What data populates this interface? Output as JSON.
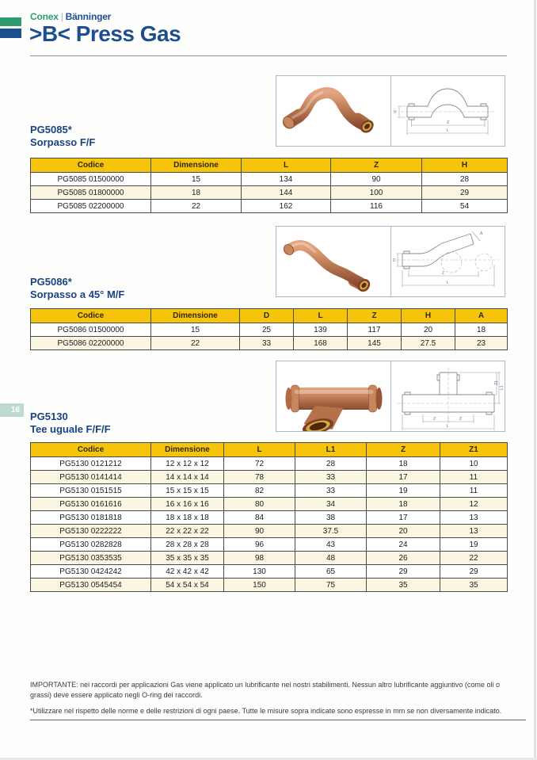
{
  "brand": {
    "conex": "Conex",
    "separator": "|",
    "banninger": "Bänninger",
    "product_line": ">B< Press Gas"
  },
  "page_tab": "16",
  "sections": [
    {
      "code": "PG5085*",
      "name": "Sorpasso F/F",
      "table": {
        "headers": [
          "Codice",
          "Dimensione",
          "L",
          "Z",
          "H"
        ],
        "rows": [
          [
            "PG5085 01500000",
            "15",
            "134",
            "90",
            "28"
          ],
          [
            "PG5085 01800000",
            "18",
            "144",
            "100",
            "29"
          ],
          [
            "PG5085 02200000",
            "22",
            "162",
            "116",
            "54"
          ]
        ]
      }
    },
    {
      "code": "PG5086*",
      "name": "Sorpasso a 45° M/F",
      "table": {
        "headers": [
          "Codice",
          "Dimensione",
          "D",
          "L",
          "Z",
          "H",
          "A"
        ],
        "rows": [
          [
            "PG5086 01500000",
            "15",
            "25",
            "139",
            "117",
            "20",
            "18"
          ],
          [
            "PG5086 02200000",
            "22",
            "33",
            "168",
            "145",
            "27.5",
            "23"
          ]
        ]
      }
    },
    {
      "code": "PG5130",
      "name": "Tee uguale F/F/F",
      "table": {
        "headers": [
          "Codice",
          "Dimensione",
          "L",
          "L1",
          "Z",
          "Z1"
        ],
        "rows": [
          [
            "PG5130 0121212",
            "12 x 12 x 12",
            "72",
            "28",
            "18",
            "10"
          ],
          [
            "PG5130 0141414",
            "14 x 14 x 14",
            "78",
            "33",
            "17",
            "11"
          ],
          [
            "PG5130 0151515",
            "15 x 15 x 15",
            "82",
            "33",
            "19",
            "11"
          ],
          [
            "PG5130 0161616",
            "16 x 16 x 16",
            "80",
            "34",
            "18",
            "12"
          ],
          [
            "PG5130 0181818",
            "18 x 18 x 18",
            "84",
            "38",
            "17",
            "13"
          ],
          [
            "PG5130 0222222",
            "22 x 22 x 22",
            "90",
            "37.5",
            "20",
            "13"
          ],
          [
            "PG5130 0282828",
            "28 x 28 x 28",
            "96",
            "43",
            "24",
            "19"
          ],
          [
            "PG5130 0353535",
            "35 x 35 x 35",
            "98",
            "48",
            "26",
            "22"
          ],
          [
            "PG5130 0424242",
            "42 x 42 x 42",
            "130",
            "65",
            "29",
            "29"
          ],
          [
            "PG5130 0545454",
            "54 x 54 x 54",
            "150",
            "75",
            "35",
            "35"
          ]
        ]
      }
    }
  ],
  "drawings": {
    "d1": {
      "h": "H",
      "z": "Z",
      "l": "L"
    },
    "d2": {
      "d": "D",
      "z": "Z",
      "l": "L",
      "a": "A"
    },
    "d3": {
      "za": "Z",
      "zb": "Z",
      "l": "L",
      "l1": "L1",
      "z1": "Z1"
    }
  },
  "notes": {
    "important": "IMPORTANTE: nei raccordi per applicazioni Gas viene applicato un lubrificante nei nostri stabilimenti. Nessun altro lubrificante aggiuntivo (come oli o grassi) deve essere applicato negli O-ring dei raccordi.",
    "usage": "*Utilizzare nel rispetto delle norme  e delle restrizioni di ogni paese. Tutte le misure sopra indicate sono espresse in mm se non diversamente indicato."
  },
  "colors": {
    "brand_green": "#2f9c70",
    "brand_blue": "#1c4f8f",
    "section_title_blue": "#1a4383",
    "table_header_yellow": "#f6c50b",
    "row_alt_cream": "#faf6e2",
    "image_border": "#aab9cc",
    "page_tab_green": "#bddccf",
    "copper": "#c07e57"
  }
}
